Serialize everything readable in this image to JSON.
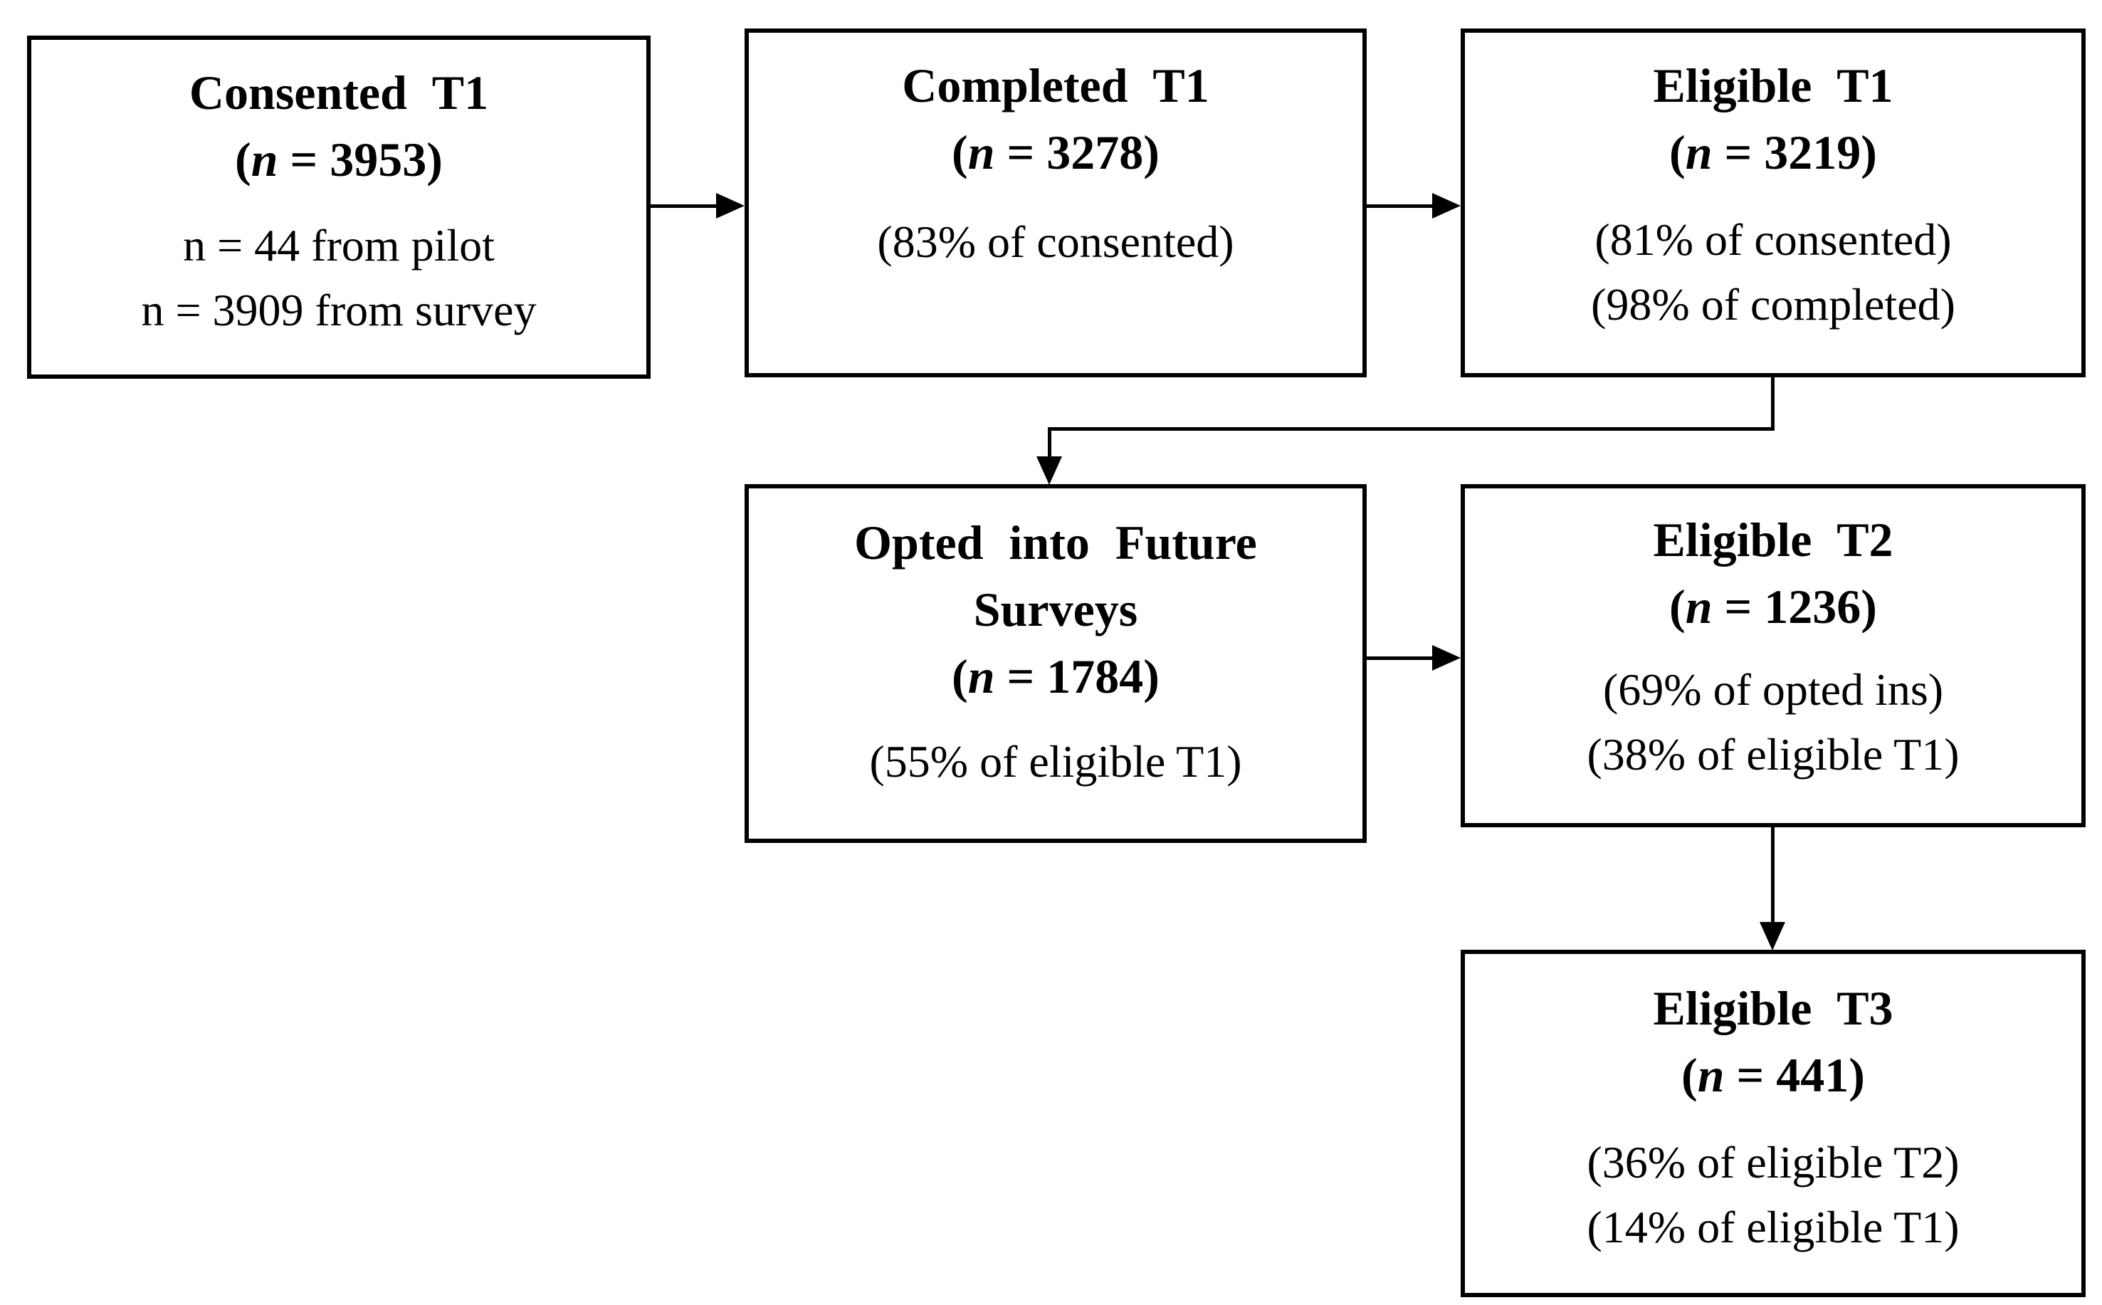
{
  "figure": {
    "background_color": "#ffffff",
    "line_color": "#000000"
  },
  "boxes": [
    {
      "id": "consented-t1",
      "title": "Consented T1",
      "stat": {
        "open": "(",
        "n": "n",
        "eq": " = ",
        "value": "3953",
        "close": ")"
      },
      "details": [
        "n = 44 from pilot",
        "n = 3909 from survey"
      ]
    },
    {
      "id": "completed-t1",
      "title": "Completed T1",
      "stat": {
        "open": "(",
        "n": "n",
        "eq": " = ",
        "value": "3278",
        "close": ")"
      },
      "details": [
        "(83% of consented)"
      ]
    },
    {
      "id": "eligible-t1",
      "title": "Eligible T1",
      "stat": {
        "open": "(",
        "n": "n",
        "eq": " = ",
        "value": "3219",
        "close": ")"
      },
      "details": [
        "(81% of consented)",
        "(98% of completed)"
      ]
    },
    {
      "id": "opted-in",
      "title": "Opted into Future",
      "title2": "Surveys",
      "stat": {
        "open": "(",
        "n": "n",
        "eq": " = ",
        "value": "1784",
        "close": ")"
      },
      "details": [
        "(55% of eligible T1)"
      ]
    },
    {
      "id": "eligible-t2",
      "title": "Eligible T2",
      "stat": {
        "open": "(",
        "n": "n",
        "eq": " = ",
        "value": "1236",
        "close": ")"
      },
      "details": [
        "(69% of opted ins)",
        "(38% of eligible T1)"
      ]
    },
    {
      "id": "eligible-t3",
      "title": "Eligible T3",
      "stat": {
        "open": "(",
        "n": "n",
        "eq": " = ",
        "value": "441",
        "close": ")"
      },
      "details": [
        "(36% of eligible T2)",
        "(14% of eligible T1)"
      ]
    }
  ]
}
